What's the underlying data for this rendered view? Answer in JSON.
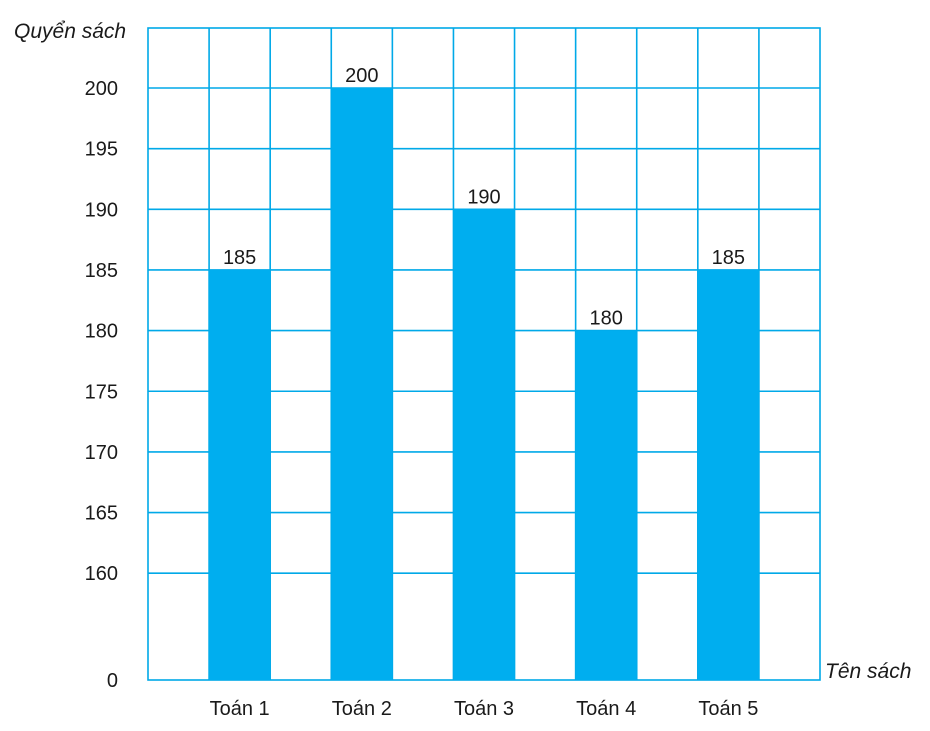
{
  "chart_data": {
    "type": "bar",
    "ylabel": "Quyển sách",
    "xlabel": "Tên sách",
    "categories": [
      "Toán 1",
      "Toán 2",
      "Toán 3",
      "Toán 4",
      "Toán 5"
    ],
    "values": [
      185,
      200,
      190,
      180,
      185
    ],
    "data_labels": [
      "185",
      "200",
      "190",
      "180",
      "185"
    ],
    "y_ticks": [
      0,
      160,
      165,
      170,
      175,
      180,
      185,
      190,
      195,
      200
    ],
    "y_axis_break": "0 then 160 to 200 step 5",
    "ylim": [
      160,
      205
    ],
    "grid": true,
    "bar_color": "#00aeef",
    "grid_color": "#00a9e8"
  }
}
